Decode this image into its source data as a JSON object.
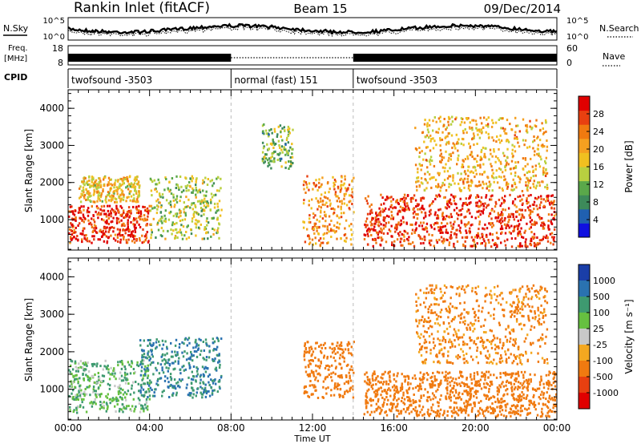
{
  "header": {
    "title": "Rankin Inlet (fitACF)",
    "beam": "Beam 15",
    "date": "09/Dec/2014"
  },
  "top_strips": {
    "nsky_label": "N.Sky",
    "nsearch_label": "N.Search",
    "noise_ticks": [
      "10^5",
      "10^0"
    ],
    "freq_label": "Freq.",
    "freq_unit": "[MHz]",
    "freq_ticks": [
      "18",
      "8"
    ],
    "nave_label": "Nave",
    "nave_ticks": [
      "60",
      "0"
    ],
    "cpid_label": "CPID",
    "cpid_segments": [
      {
        "label": "twofsound -3503",
        "start_h": 0,
        "end_h": 8
      },
      {
        "label": "normal (fast) 151",
        "start_h": 8,
        "end_h": 14
      },
      {
        "label": "twofsound -3503",
        "start_h": 14,
        "end_h": 24
      }
    ]
  },
  "axes": {
    "ylabel": "Slant Range [km]",
    "xlabel": "Time UT",
    "y_ticks": [
      "1000",
      "2000",
      "3000",
      "4000"
    ],
    "x_ticks": [
      "00:00",
      "04:00",
      "08:00",
      "12:00",
      "16:00",
      "20:00",
      "00:00"
    ]
  },
  "colorbars": {
    "power": {
      "label": "Power [dB]",
      "ticks": [
        "4",
        "8",
        "12",
        "16",
        "20",
        "24",
        "28"
      ],
      "colors": [
        "#1010e0",
        "#2060b0",
        "#3d8a5a",
        "#5aa84a",
        "#b8d040",
        "#f0c020",
        "#f5a020",
        "#f07a10",
        "#e84010",
        "#e00000"
      ]
    },
    "velocity": {
      "label": "Velocity [m s⁻¹]",
      "ticks": [
        "1000",
        "500",
        "100",
        "25",
        "-25",
        "-100",
        "-500",
        "-1000"
      ],
      "colors": [
        "#1a3ea8",
        "#2a72b0",
        "#3e9a70",
        "#66c040",
        "#c8c8c8",
        "#f4a820",
        "#f07a10",
        "#e84010",
        "#e00000"
      ]
    }
  },
  "chart_data": [
    {
      "type": "heatmap",
      "title": "Power",
      "xlabel": "Time UT",
      "ylabel": "Slant Range [km]",
      "xlim_hours": [
        0,
        24
      ],
      "ylim_km": [
        180,
        4500
      ],
      "colorbar": "Power [dB]",
      "features": [
        {
          "t": [
            0.0,
            4.0
          ],
          "range_km": [
            400,
            1400
          ],
          "power_db": 28
        },
        {
          "t": [
            0.5,
            3.5
          ],
          "range_km": [
            1500,
            2200
          ],
          "power_db": 18
        },
        {
          "t": [
            4.0,
            7.5
          ],
          "range_km": [
            500,
            2200
          ],
          "power_db": 14
        },
        {
          "t": [
            9.5,
            11.0
          ],
          "range_km": [
            2400,
            3600
          ],
          "power_db": 12
        },
        {
          "t": [
            11.5,
            14.0
          ],
          "range_km": [
            300,
            2200
          ],
          "power_db": 22
        },
        {
          "t": [
            14.5,
            24.0
          ],
          "range_km": [
            300,
            1700
          ],
          "power_db": 28
        },
        {
          "t": [
            17.0,
            23.5
          ],
          "range_km": [
            1800,
            3800
          ],
          "power_db": 20
        }
      ]
    },
    {
      "type": "heatmap",
      "title": "Velocity",
      "xlabel": "Time UT",
      "ylabel": "Slant Range [km]",
      "xlim_hours": [
        0,
        24
      ],
      "ylim_km": [
        180,
        4500
      ],
      "colorbar": "Velocity [m s⁻¹]",
      "features": [
        {
          "t": [
            0.0,
            4.0
          ],
          "range_km": [
            400,
            1800
          ],
          "velocity_ms": 100
        },
        {
          "t": [
            3.5,
            7.5
          ],
          "range_km": [
            800,
            2400
          ],
          "velocity_ms": 500
        },
        {
          "t": [
            11.5,
            14.0
          ],
          "range_km": [
            800,
            2300
          ],
          "velocity_ms": -300
        },
        {
          "t": [
            14.5,
            24.0
          ],
          "range_km": [
            300,
            1500
          ],
          "velocity_ms": -300
        },
        {
          "t": [
            17.0,
            23.5
          ],
          "range_km": [
            1700,
            3800
          ],
          "velocity_ms": -150
        }
      ]
    }
  ]
}
